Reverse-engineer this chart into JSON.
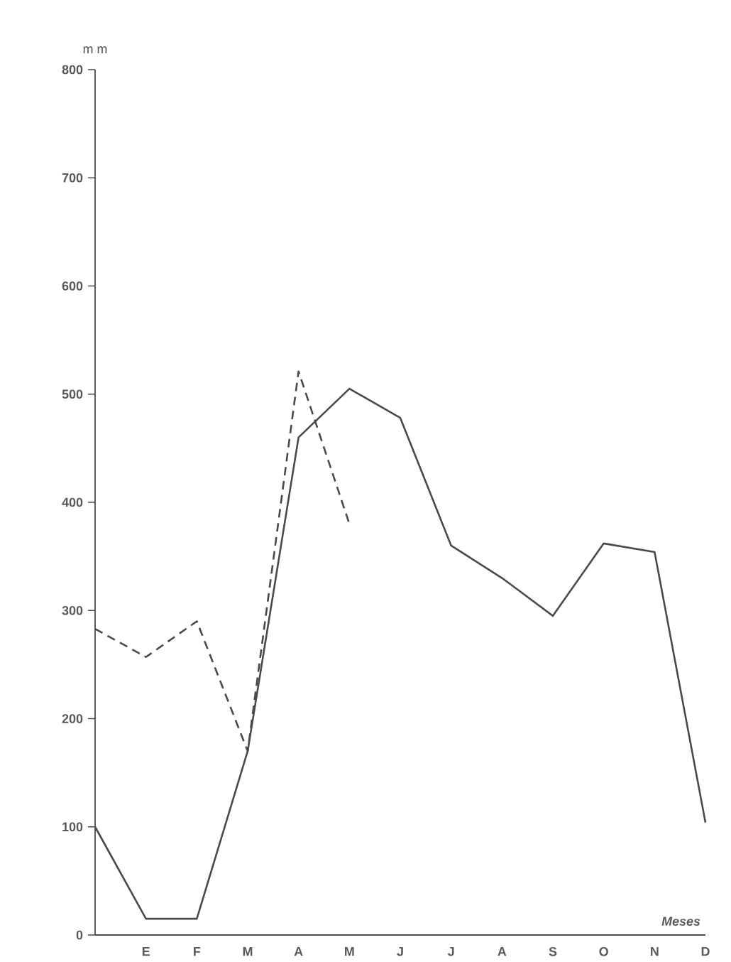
{
  "chart_data": {
    "type": "line",
    "ylabel": "m m",
    "xlabel": "Meses",
    "ylim": [
      0,
      800
    ],
    "categories": [
      null,
      "E",
      "F",
      "M",
      "A",
      "M",
      "J",
      "J",
      "A",
      "S",
      "O",
      "N",
      "D"
    ],
    "yticks": [
      0,
      100,
      200,
      300,
      400,
      500,
      600,
      700,
      800
    ],
    "series": [
      {
        "color": "#4a4a4a",
        "line_style": "solid",
        "values": [
          100,
          15,
          15,
          170,
          460,
          505,
          478,
          360,
          330,
          295,
          362,
          354,
          104
        ]
      },
      {
        "color": "#4a4a4a",
        "line_style": "dashed",
        "values": [
          283,
          257,
          290,
          170,
          521,
          380,
          null,
          null,
          null,
          null,
          null,
          null,
          null
        ]
      }
    ]
  }
}
